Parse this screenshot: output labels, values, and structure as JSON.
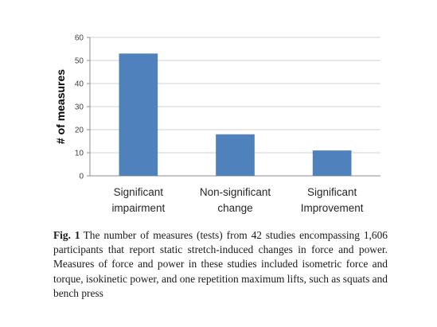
{
  "chart_data": {
    "type": "bar",
    "categories": [
      [
        "Significant",
        "impairment"
      ],
      [
        "Non-significant",
        "change"
      ],
      [
        "Significant",
        "Improvement"
      ]
    ],
    "values": [
      53,
      18,
      11
    ],
    "ylabel": "# of measures",
    "ylim": [
      0,
      60
    ],
    "yticks": [
      "0",
      "10",
      "20",
      "30",
      "40",
      "50",
      "60"
    ],
    "grid": true,
    "bar_color": "#4f81bd",
    "grid_color": "#d0d0d0"
  },
  "caption": {
    "label": "Fig. 1",
    "text": "The number of measures (tests) from 42 studies encompassing 1,606 participants that report static stretch-induced changes in force and power. Measures of force and power in these studies included isometric force and torque, isokinetic power, and one repetition maximum lifts, such as squats and bench press"
  }
}
